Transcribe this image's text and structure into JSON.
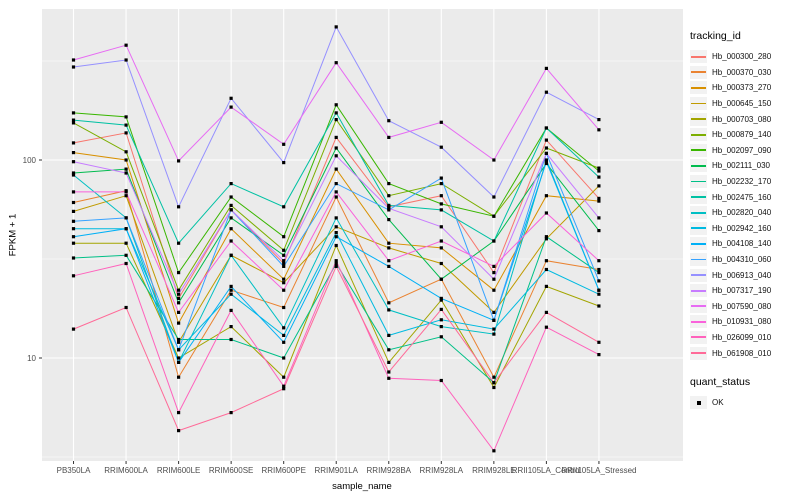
{
  "legend": {
    "tracking_title": "tracking_id",
    "quant_title": "quant_status",
    "quant_items": [
      {
        "label": "OK",
        "symbol": "black-square"
      }
    ]
  },
  "chart_data": {
    "type": "line",
    "y_scale": "log10",
    "ylim": [
      3,
      600
    ],
    "yticks": [
      10,
      100
    ],
    "ytick_labels": [
      "10",
      "100"
    ],
    "y_minor_ticks": [
      3.162,
      31.62,
      316.2
    ],
    "xlabel": "sample_name",
    "ylabel": "FPKM + 1",
    "grid": true,
    "panel_color": "#EBEBEB",
    "grid_color": "#FFFFFF",
    "tick_label_color": "#4D4D4D",
    "legend_position": "right",
    "point_symbol": "filled-square",
    "point_color": "#000000",
    "categories": [
      "PB350LA",
      "RRIM600LA",
      "RRIM600LE",
      "RRIM600SE",
      "RRIM600PE",
      "RRIM901LA",
      "RRIM928BA",
      "RRIM928LA",
      "RRIM928LE",
      "RRII105LA_Control",
      "RRII105LA_Stressed"
    ],
    "series": [
      {
        "name": "Hb_000300_280",
        "color": "#F8766D",
        "values": [
          122,
          137,
          20,
          56,
          30,
          130,
          58,
          66,
          27,
          126,
          64
        ]
      },
      {
        "name": "Hb_000370_030",
        "color": "#EA8331",
        "values": [
          61,
          70,
          8,
          22,
          18,
          65,
          19,
          25,
          8,
          31,
          28
        ]
      },
      {
        "name": "Hb_000373_270",
        "color": "#D89000",
        "values": [
          109,
          100,
          15,
          45,
          25,
          90,
          38,
          36,
          22,
          66,
          62
        ]
      },
      {
        "name": "Hb_000645_150",
        "color": "#C09B00",
        "values": [
          55,
          66,
          12,
          33,
          24,
          46,
          36,
          30,
          17,
          40,
          74
        ]
      },
      {
        "name": "Hb_000703_080",
        "color": "#A3A500",
        "values": [
          38,
          38,
          10,
          14.4,
          8,
          37,
          9.5,
          19.6,
          7.1,
          23,
          18.3
        ]
      },
      {
        "name": "Hb_000879_140",
        "color": "#7CAE00",
        "values": [
          154,
          110,
          22,
          59,
          35,
          160,
          66,
          76,
          52,
          115,
          91
        ]
      },
      {
        "name": "Hb_002097_090",
        "color": "#39B600",
        "values": [
          173,
          165,
          27,
          65,
          41,
          190,
          76,
          60,
          52,
          145,
          88
        ]
      },
      {
        "name": "Hb_002111_030",
        "color": "#00BB4E",
        "values": [
          86,
          90,
          19,
          51,
          33,
          115,
          50,
          25,
          39,
          96,
          44
        ]
      },
      {
        "name": "Hb_002232_170",
        "color": "#00C087",
        "values": [
          32,
          33,
          12.4,
          12.4,
          10,
          30,
          11,
          12.8,
          7.5,
          41,
          27
        ]
      },
      {
        "name": "Hb_002475_160",
        "color": "#00C1A3",
        "values": [
          159,
          150,
          38,
          76,
          58,
          173,
          59,
          56,
          39,
          145,
          82
        ]
      },
      {
        "name": "Hb_002820_040",
        "color": "#00BFC4",
        "values": [
          84,
          51,
          9.5,
          33,
          14.2,
          51,
          17.5,
          14.4,
          13.2,
          100,
          22
        ]
      },
      {
        "name": "Hb_002942_160",
        "color": "#00BAE0",
        "values": [
          45,
          45,
          11,
          21,
          13,
          43,
          13,
          15.6,
          14,
          28,
          21
        ]
      },
      {
        "name": "Hb_004108_140",
        "color": "#00B0F6",
        "values": [
          41,
          45,
          9.5,
          23,
          12,
          41,
          29,
          20,
          15.5,
          98,
          22
        ]
      },
      {
        "name": "Hb_004310_060",
        "color": "#35A2FF",
        "values": [
          49,
          51,
          11,
          56,
          29,
          76,
          56,
          81,
          15.5,
          108,
          24.5
        ]
      },
      {
        "name": "Hb_006913_040",
        "color": "#9590FF",
        "values": [
          295,
          320,
          58,
          205,
          97,
          470,
          158,
          116,
          65,
          220,
          160
        ]
      },
      {
        "name": "Hb_007317_190",
        "color": "#C77CFF",
        "values": [
          98,
          86,
          21,
          56,
          31,
          105,
          57,
          46,
          25,
          108,
          51
        ]
      },
      {
        "name": "Hb_007590_080",
        "color": "#E76BF3",
        "values": [
          320,
          380,
          99,
          185,
          120,
          310,
          130,
          155,
          100,
          290,
          142
        ]
      },
      {
        "name": "Hb_010931_080",
        "color": "#FA62DB",
        "values": [
          69,
          69,
          17,
          39,
          22,
          69,
          31,
          39,
          29,
          54,
          31
        ]
      },
      {
        "name": "Hb_026099_010",
        "color": "#FF62BC",
        "values": [
          26,
          30,
          5.3,
          17.4,
          7.2,
          31,
          7.9,
          7.7,
          3.4,
          14.3,
          10.4
        ]
      },
      {
        "name": "Hb_061908_010",
        "color": "#FF6A98",
        "values": [
          14,
          18,
          4.3,
          5.3,
          7,
          29,
          8.5,
          17.6,
          7.5,
          17,
          12
        ]
      }
    ]
  }
}
